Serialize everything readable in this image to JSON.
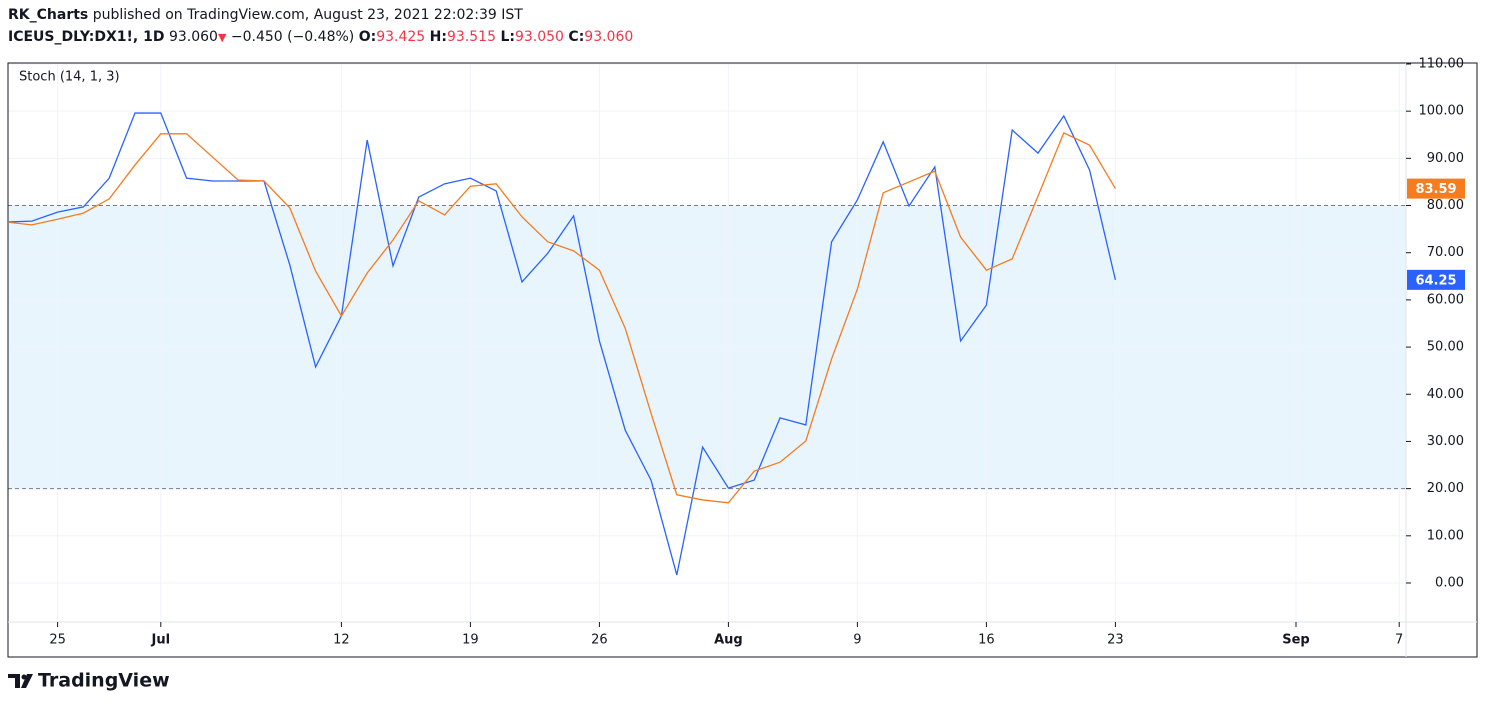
{
  "header": {
    "publisher": "RK_Charts",
    "published_text": "published on TradingView.com, August 23, 2021 22:02:39 IST",
    "symbol": "ICEUS_DLY:DX1!, 1D",
    "price": "93.060",
    "change": "−0.450 (−0.48%)",
    "ohlc": [
      {
        "label": "O:",
        "value": "93.425"
      },
      {
        "label": "H:",
        "value": "93.515"
      },
      {
        "label": "L:",
        "value": "93.050"
      },
      {
        "label": "C:",
        "value": "93.060"
      }
    ]
  },
  "footer": {
    "brand": "TradingView"
  },
  "chart_data": {
    "type": "line",
    "title": "Stoch (14, 1, 3)",
    "categories": [
      null,
      null,
      "25",
      null,
      null,
      null,
      "Jul",
      null,
      null,
      null,
      null,
      null,
      null,
      "12",
      null,
      null,
      null,
      null,
      "19",
      null,
      null,
      null,
      null,
      "26",
      null,
      null,
      null,
      null,
      "Aug",
      null,
      null,
      null,
      null,
      "9",
      null,
      null,
      null,
      null,
      "16",
      null,
      null,
      null,
      null,
      "23",
      null,
      null,
      null,
      null,
      null,
      null,
      "Sep",
      null,
      null,
      null,
      "7"
    ],
    "series": [
      {
        "color": "#2962ff",
        "values": [
          76.5,
          76.7,
          78.6,
          79.7,
          85.8,
          99.6,
          99.6,
          85.8,
          85.2,
          85.2,
          85.2,
          67.4,
          45.8,
          56.6,
          93.9,
          67.2,
          81.8,
          84.6,
          85.8,
          83.1,
          63.8,
          69.9,
          77.8,
          51.3,
          32.4,
          21.8,
          1.7,
          28.8,
          20.1,
          21.8,
          35.0,
          33.5,
          72.3,
          81.2,
          93.5,
          79.9,
          88.2,
          51.3,
          58.9,
          96.0,
          91.1,
          99.0,
          87.5,
          64.25,
          null,
          null,
          null,
          null,
          null,
          null,
          null,
          null,
          null,
          null,
          null
        ]
      },
      {
        "color": "#f57c1f",
        "values": [
          76.5,
          75.9,
          77.1,
          78.4,
          81.4,
          88.6,
          95.2,
          95.2,
          90.3,
          85.4,
          85.2,
          79.5,
          66.1,
          56.6,
          65.7,
          72.7,
          81.0,
          78.0,
          84.1,
          84.6,
          77.6,
          72.3,
          70.4,
          66.3,
          54.0,
          36.0,
          18.7,
          17.6,
          17.0,
          23.7,
          25.6,
          30.1,
          47.5,
          62.3,
          82.7,
          85.0,
          87.3,
          73.3,
          66.3,
          68.7,
          82.0,
          95.4,
          92.8,
          83.59,
          null,
          null,
          null,
          null,
          null,
          null,
          null,
          null,
          null,
          null,
          null
        ]
      }
    ],
    "bands": [
      20,
      80
    ],
    "band_color": "#e3f2fd",
    "ylim": [
      -8.27,
      110.21
    ],
    "yticks": [
      {
        "value": 0,
        "label": "0.00"
      },
      {
        "value": 10,
        "label": "10.00"
      },
      {
        "value": 20,
        "label": "20.00"
      },
      {
        "value": 30,
        "label": "30.00"
      },
      {
        "value": 40,
        "label": "40.00"
      },
      {
        "value": 50,
        "label": "50.00"
      },
      {
        "value": 60,
        "label": "60.00"
      },
      {
        "value": 70,
        "label": "70.00"
      },
      {
        "value": 80,
        "label": "80.00"
      },
      {
        "value": 90,
        "label": "90.00"
      },
      {
        "value": 100,
        "label": "100.00"
      },
      {
        "value": 110,
        "label": "110.00"
      }
    ],
    "grid": true
  }
}
